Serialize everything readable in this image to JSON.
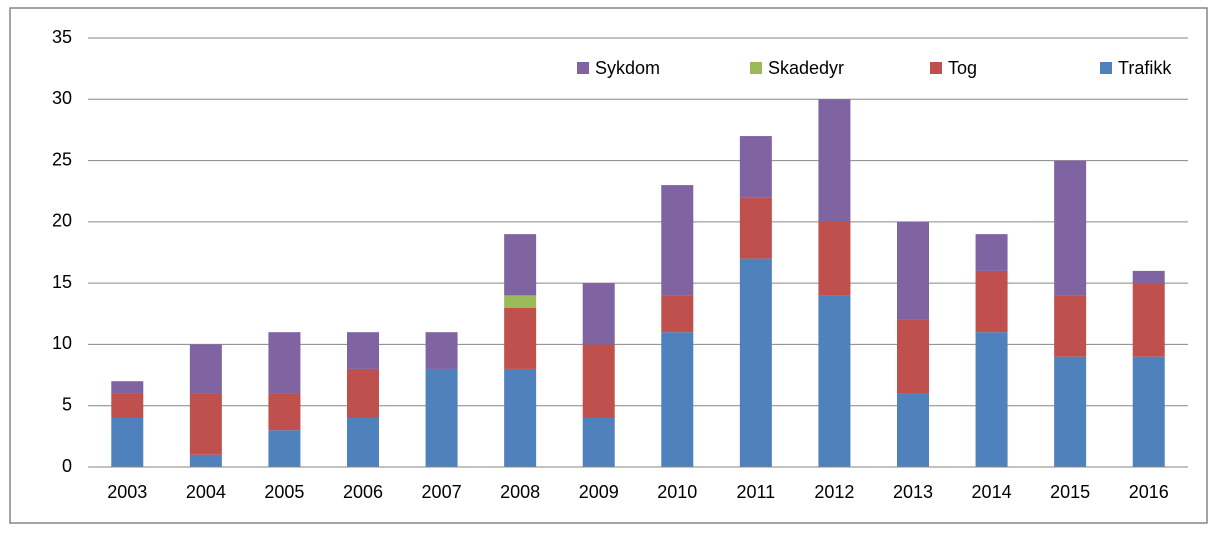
{
  "chart_data": {
    "type": "stacked_bar",
    "categories": [
      "2003",
      "2004",
      "2005",
      "2006",
      "2007",
      "2008",
      "2009",
      "2010",
      "2011",
      "2012",
      "2013",
      "2014",
      "2015",
      "2016"
    ],
    "series": [
      {
        "name": "Trafikk",
        "color": "#4f81bd",
        "values": [
          4,
          1,
          3,
          4,
          8,
          8,
          4,
          11,
          17,
          14,
          6,
          11,
          9,
          9
        ]
      },
      {
        "name": "Tog",
        "color": "#c0504d",
        "values": [
          2,
          5,
          3,
          4,
          0,
          5,
          6,
          3,
          5,
          6,
          6,
          5,
          5,
          6
        ]
      },
      {
        "name": "Skadedyr",
        "color": "#9bbb59",
        "values": [
          0,
          0,
          0,
          0,
          0,
          1,
          0,
          0,
          0,
          0,
          0,
          0,
          0,
          0
        ]
      },
      {
        "name": "Sykdom",
        "color": "#8064a2",
        "values": [
          1,
          4,
          5,
          3,
          3,
          5,
          5,
          9,
          5,
          10,
          8,
          3,
          11,
          1
        ]
      }
    ],
    "ylim": [
      0,
      35
    ],
    "yticks": [
      0,
      5,
      10,
      15,
      20,
      25,
      30,
      35
    ],
    "grid": true,
    "legend": "top-right"
  }
}
